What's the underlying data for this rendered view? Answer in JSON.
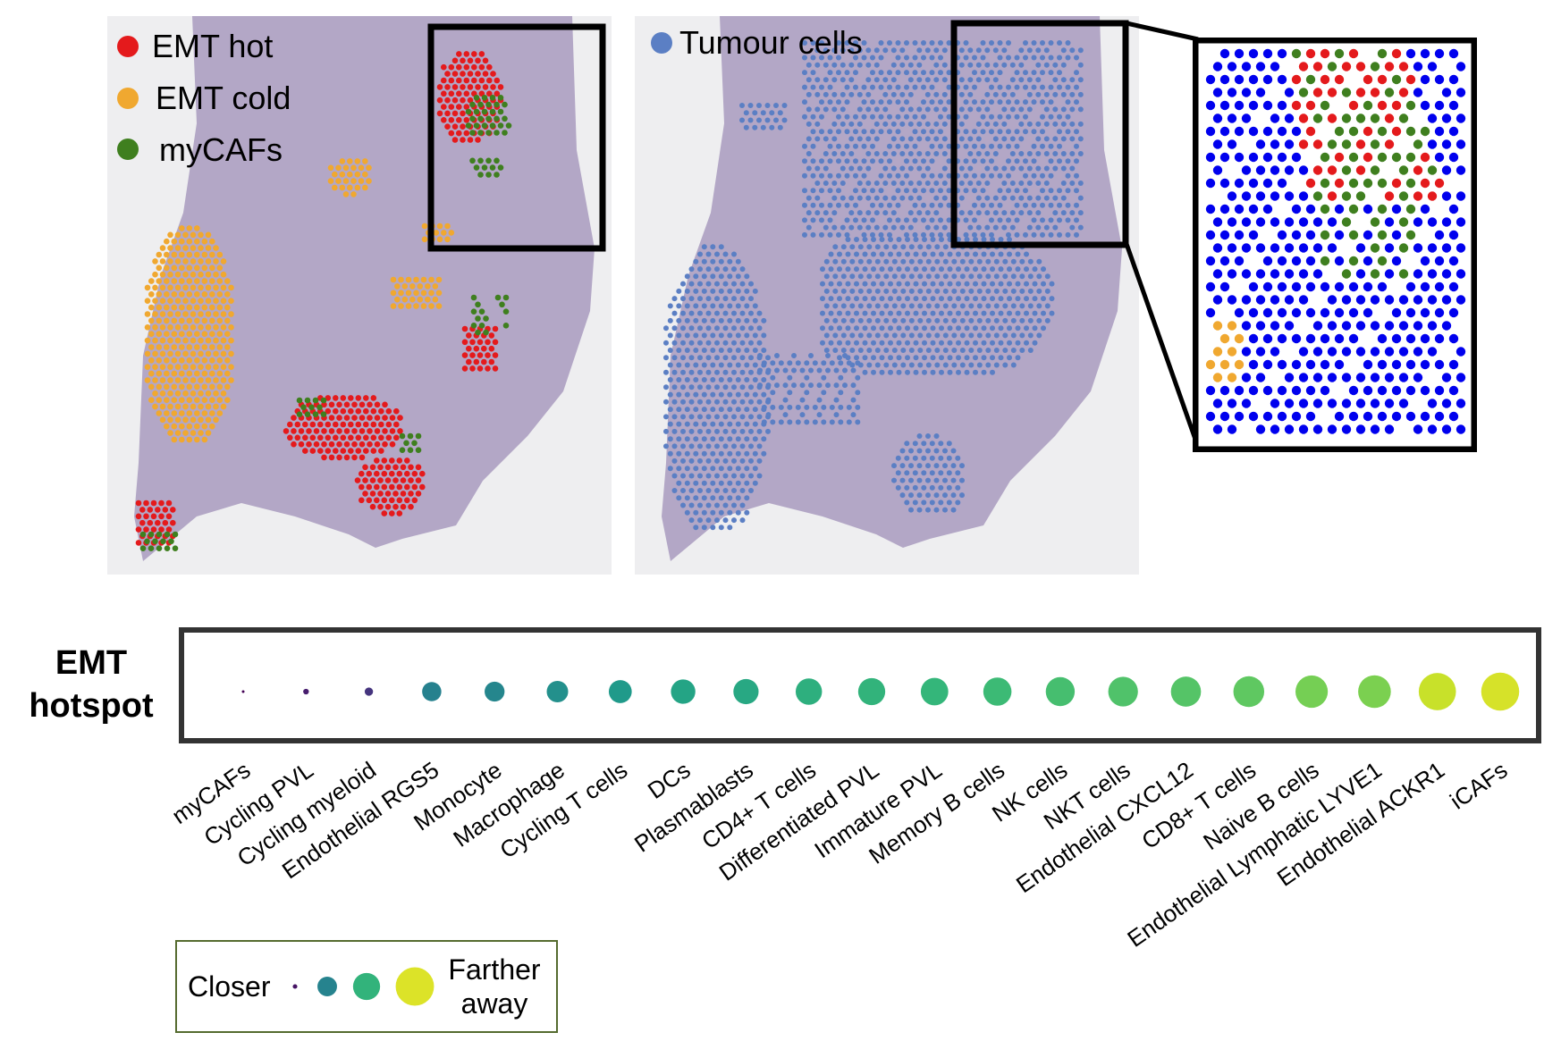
{
  "tissue_panel_left": {
    "legend": [
      {
        "label": "EMT hot",
        "color": "#e41a1c"
      },
      {
        "label": "EMT cold",
        "color": "#f0a830"
      },
      {
        "label": "myCAFs",
        "color": "#3f7f1f"
      }
    ]
  },
  "tissue_panel_right": {
    "legend": [
      {
        "label": "Tumour cells",
        "color": "#5b7fc4"
      }
    ]
  },
  "colors": {
    "tissue": "#b3a7c6",
    "tissue_dark": "#9d8fb4",
    "background": "#eeeef0",
    "emt_hot": "#e41a1c",
    "emt_cold": "#f0a830",
    "mycafs": "#3f7f1f",
    "tumour": "#5b7fc4",
    "zoom_blue": "#0000ee",
    "frame": "#000000"
  },
  "row_label": [
    "EMT",
    "hotspot"
  ],
  "chart_data": {
    "type": "dot",
    "title": "",
    "row": "EMT hotspot",
    "categories": [
      "myCAFs",
      "Cycling PVL",
      "Cycling myeloid",
      "Endothelial RGS5",
      "Monocyte",
      "Macrophage",
      "Cycling T cells",
      "DCs",
      "Plasmablasts",
      "CD4+ T cells",
      "Differentiated PVL",
      "Immature PVL",
      "Memory B cells",
      "NK cells",
      "NKT cells",
      "Endothelial CXCL12",
      "CD8+ T cells",
      "Naive B cells",
      "Endothelial Lymphatic LYVE1",
      "Endothelial ACKR1",
      "iCAFs"
    ],
    "values": [
      0.0,
      0.08,
      0.15,
      0.44,
      0.46,
      0.5,
      0.54,
      0.58,
      0.6,
      0.63,
      0.65,
      0.66,
      0.68,
      0.7,
      0.72,
      0.73,
      0.75,
      0.79,
      0.8,
      0.92,
      0.94
    ],
    "color_scale": "viridis",
    "scale_meaning": {
      "low": "Closer",
      "high": "Farther away"
    }
  },
  "size_legend": {
    "low_label": "Closer",
    "high_label": "Farther away",
    "levels": [
      0.05,
      0.45,
      0.65,
      0.95
    ]
  }
}
